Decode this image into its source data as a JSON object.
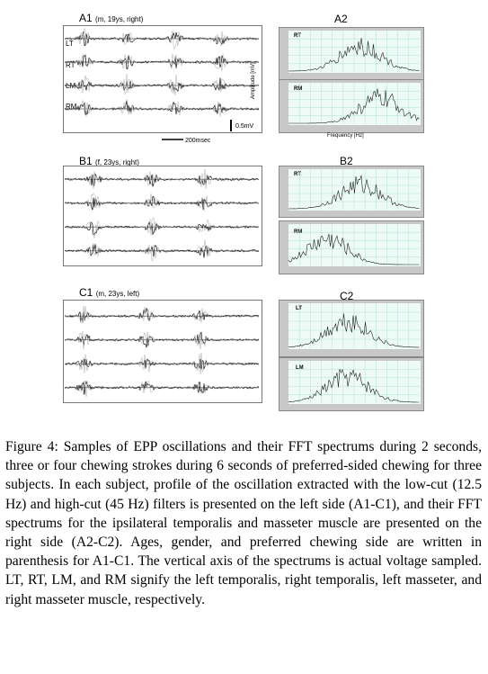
{
  "panels": {
    "A1": {
      "label": "A1",
      "info": "(m, 19ys, right)",
      "channels": [
        "LT",
        "RT",
        "LM",
        "RM"
      ]
    },
    "B1": {
      "label": "B1",
      "info": "(f, 23ys, right)"
    },
    "C1": {
      "label": "C1",
      "info": "(m, 23ys, left)"
    },
    "A2": {
      "label": "A2",
      "top": "RT",
      "bottom": "RM"
    },
    "B2": {
      "label": "B2",
      "top": "RT",
      "bottom": "RM"
    },
    "C2": {
      "label": "C2",
      "top": "LT",
      "bottom": "LM"
    }
  },
  "scale": {
    "time": "200msec",
    "voltage": "0.5mV"
  },
  "spectrum_axes": {
    "x_label": "Frequency [Hz]",
    "y_label": "Amplitude [mV]"
  },
  "caption": "Figure 4: Samples of EPP oscillations and their FFT spectrums during 2 seconds, three or four chewing strokes during 6 seconds of preferred-sided chewing for three subjects. In each subject, profile of the oscillation extracted with the low-cut (12.5 Hz) and high-cut (45 Hz) filters is presented on the left side (A1-C1), and their FFT spectrums for the ipsilateral temporalis and masseter muscle are presented on the right side (A2-C2). Ages, gender, and preferred chewing side are written in parenthesis for A1-C1. The vertical axis of the spectrums is actual voltage sampled. LT, RT, LM, and RM signify the left temporalis, right temporalis, left masseter, and right masseter muscle, respectively."
}
